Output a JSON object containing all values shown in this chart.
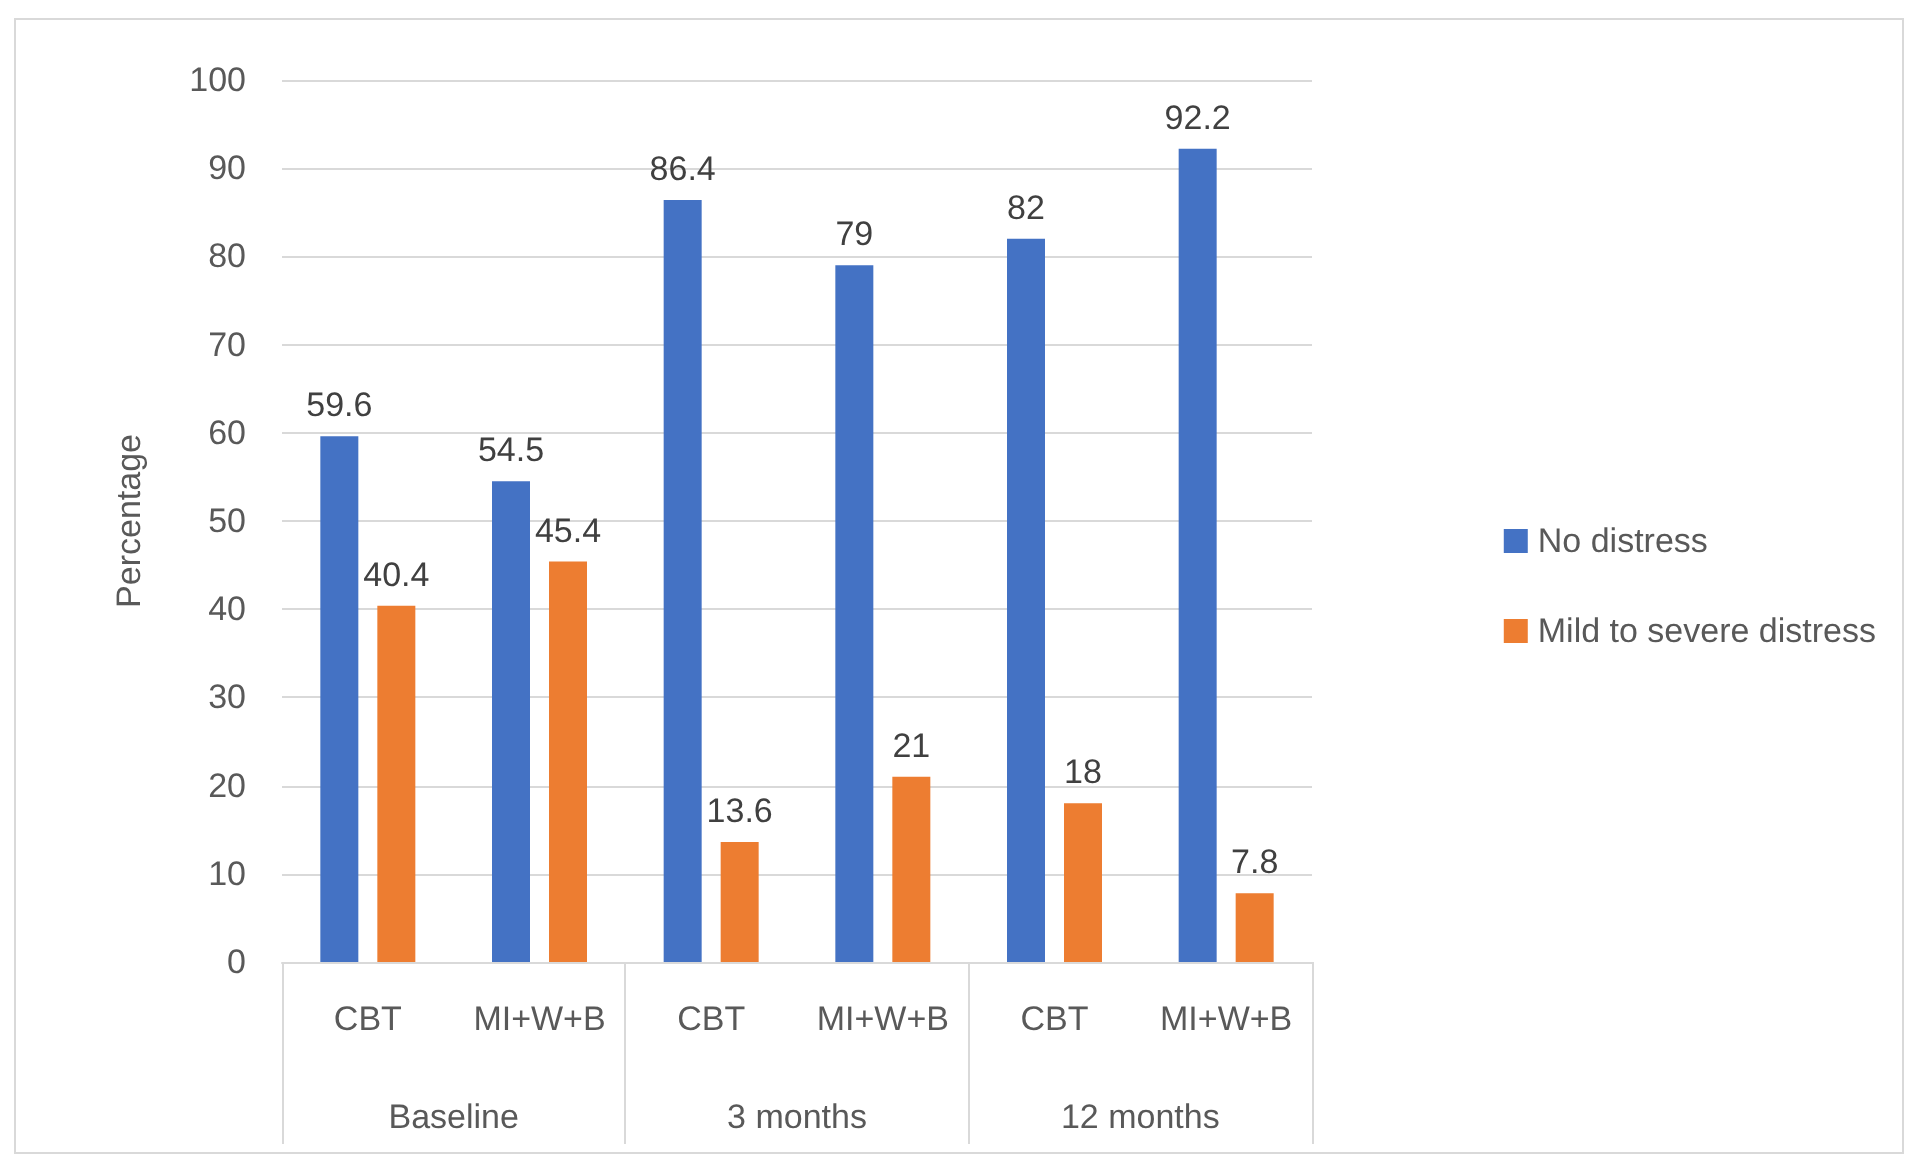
{
  "chart_data": {
    "type": "bar",
    "ylabel": "Percentage",
    "categories": [
      "CBT",
      "MI+W+B",
      "CBT",
      "MI+W+B",
      "CBT",
      "MI+W+B"
    ],
    "annotations": [
      "Baseline",
      "3 months",
      "12 months"
    ],
    "series": [
      {
        "name": "No distress",
        "color": "#4472c4",
        "values": [
          59.6,
          54.5,
          86.4,
          79,
          82,
          92.2
        ]
      },
      {
        "name": "Mild to severe distress",
        "color": "#ed7d31",
        "values": [
          40.4,
          45.4,
          13.6,
          21,
          18,
          7.8
        ]
      }
    ],
    "ylim": [
      0,
      100
    ],
    "yticks": [
      0,
      10,
      20,
      30,
      40,
      50,
      60,
      70,
      80,
      90,
      100
    ],
    "grid": "y",
    "data_labels": true,
    "legend": "right"
  }
}
